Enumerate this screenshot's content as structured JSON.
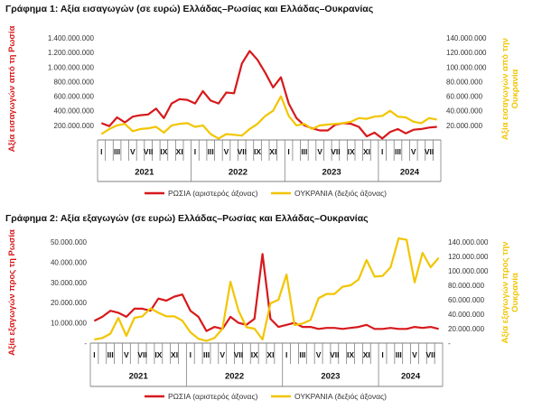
{
  "colors": {
    "russia": "#d7191c",
    "ukraine": "#f2c500",
    "axis": "#7f7f7f",
    "grid": "#e0e0e0"
  },
  "chart_data": [
    {
      "type": "line",
      "title": "Γράφημα 1: Αξία εισαγωγών (σε ευρώ) Ελλάδας–Ρωσίας και Ελλάδας–Ουκρανίας",
      "ylabel_left": "Αξία εισαγωγών από τη Ρωσία",
      "ylabel_right": "Αξία εισαγωγών από την Ουκρανία",
      "x_ticks": [
        "I",
        "III",
        "V",
        "VII",
        "IX",
        "XI",
        "I",
        "III",
        "V",
        "VII",
        "IX",
        "XI",
        "I",
        "III",
        "V",
        "VII",
        "IX",
        "XI",
        "I",
        "III",
        "V",
        "VII"
      ],
      "years": [
        "2021",
        "2022",
        "2023",
        "2024"
      ],
      "ylim_left": [
        0,
        1400000000
      ],
      "ylim_right": [
        0,
        140000000
      ],
      "yticks_left": [
        "",
        "200.000.000",
        "400.000.000",
        "600.000.000",
        "800.000.000",
        "1.000.000.000",
        "1.200.000.000",
        "1.400.000.000"
      ],
      "yticks_right": [
        "",
        "20.000.000",
        "40.000.000",
        "60.000.000",
        "80.000.000",
        "100.000.000",
        "120.000.000",
        "140.000.000"
      ],
      "series": [
        {
          "name": "ΡΩΣΙΑ (αριστερός άξονας)",
          "axis": "left",
          "values": [
            230000000,
            190000000,
            310000000,
            240000000,
            320000000,
            340000000,
            350000000,
            430000000,
            300000000,
            500000000,
            560000000,
            550000000,
            500000000,
            670000000,
            540000000,
            500000000,
            650000000,
            640000000,
            1050000000,
            1220000000,
            1100000000,
            920000000,
            720000000,
            860000000,
            500000000,
            300000000,
            200000000,
            160000000,
            130000000,
            130000000,
            210000000,
            230000000,
            220000000,
            180000000,
            50000000,
            100000000,
            20000000,
            110000000,
            150000000,
            90000000,
            140000000,
            150000000,
            170000000,
            180000000
          ]
        },
        {
          "name": "ΟΥΚΡΑΝΙΑ (δεξιός άξονας)",
          "axis": "right",
          "values": [
            8000000,
            15000000,
            20000000,
            22000000,
            12000000,
            15000000,
            16000000,
            18000000,
            10000000,
            20000000,
            22000000,
            23000000,
            18000000,
            20000000,
            8000000,
            2000000,
            8000000,
            7000000,
            6000000,
            15000000,
            22000000,
            33000000,
            40000000,
            60000000,
            33000000,
            20000000,
            22000000,
            15000000,
            20000000,
            21000000,
            22000000,
            23000000,
            25000000,
            30000000,
            29000000,
            32000000,
            33000000,
            40000000,
            32000000,
            31000000,
            25000000,
            23000000,
            30000000,
            28000000
          ]
        }
      ]
    },
    {
      "type": "line",
      "title": "Γράφημα 2: Αξία εξαγωγών (σε ευρώ) Ελλάδας–Ρωσίας και Ελλάδας–Ουκρανίας",
      "ylabel_left": "Αξία εξαγωγών προς τη Ρωσία",
      "ylabel_right": "Αξία εξαγωγών προς την Ουκρανία",
      "x_ticks": [
        "I",
        "III",
        "V",
        "VII",
        "IX",
        "XI",
        "I",
        "III",
        "V",
        "VII",
        "IX",
        "XI",
        "I",
        "III",
        "V",
        "VII",
        "IX",
        "XI",
        "I",
        "III",
        "V",
        "VII"
      ],
      "years": [
        "2021",
        "2022",
        "2023",
        "2024"
      ],
      "ylim_left": [
        0,
        50000000
      ],
      "ylim_right": [
        0,
        140000000
      ],
      "yticks_left": [
        "-",
        "10.000.000",
        "20.000.000",
        "30.000.000",
        "40.000.000",
        "50.000.000"
      ],
      "yticks_right": [
        "-",
        "20.000.000",
        "40.000.000",
        "60.000.000",
        "80.000.000",
        "100.000.000",
        "120.000.000",
        "140.000.000"
      ],
      "series": [
        {
          "name": "ΡΩΣΙΑ (αριστερός άξονας)",
          "axis": "left",
          "values": [
            11000000,
            13000000,
            16000000,
            15000000,
            13000000,
            17000000,
            17000000,
            16000000,
            22000000,
            21000000,
            23000000,
            24000000,
            16000000,
            13000000,
            6000000,
            8000000,
            7000000,
            13000000,
            10000000,
            9000000,
            12000000,
            44000000,
            12000000,
            8000000,
            9000000,
            10000000,
            8000000,
            8000000,
            7000000,
            7500000,
            7500000,
            7000000,
            7500000,
            8000000,
            9000000,
            7000000,
            7000000,
            7500000,
            7000000,
            7000000,
            8000000,
            7500000,
            8000000,
            7000000
          ]
        },
        {
          "name": "ΟΥΚΡΑΝΙΑ (δεξιός άξονας)",
          "axis": "right",
          "values": [
            5000000,
            7000000,
            13000000,
            35000000,
            10000000,
            35000000,
            37000000,
            48000000,
            42000000,
            37000000,
            37000000,
            31000000,
            15000000,
            6000000,
            3000000,
            7000000,
            20000000,
            85000000,
            45000000,
            22000000,
            20000000,
            5000000,
            55000000,
            60000000,
            95000000,
            25000000,
            27000000,
            32000000,
            62000000,
            68000000,
            68000000,
            78000000,
            80000000,
            88000000,
            115000000,
            92000000,
            93000000,
            105000000,
            145000000,
            143000000,
            84000000,
            125000000,
            105000000,
            118000000
          ]
        }
      ]
    }
  ]
}
